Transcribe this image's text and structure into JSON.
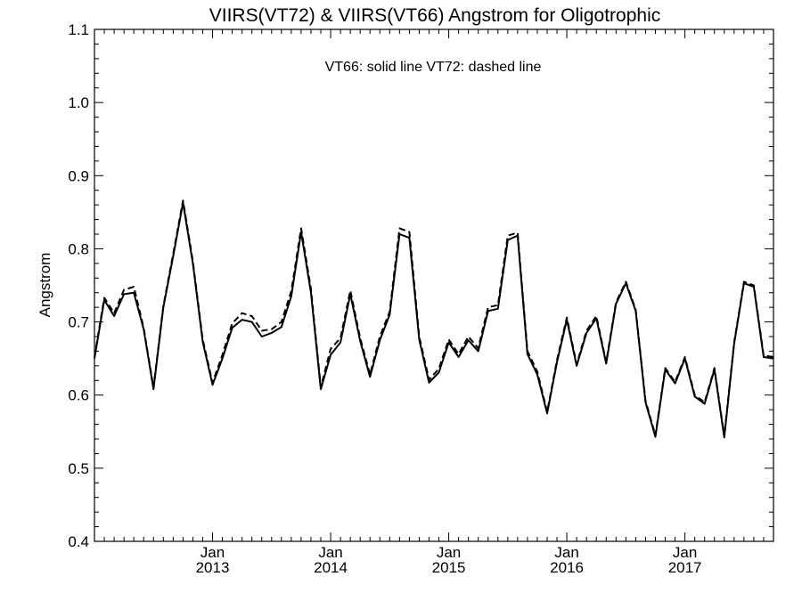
{
  "chart_data": {
    "type": "line",
    "title": "VIIRS(VT72) & VIIRS(VT66)  Angstrom for Oligotrophic",
    "ylabel": "Angstrom",
    "xlabel": "",
    "annotation": "VT66: solid line   VT72: dashed line",
    "ylim": [
      0.4,
      1.1
    ],
    "yticks": [
      0.4,
      0.5,
      0.6,
      0.7,
      0.8,
      0.9,
      1.0,
      1.1
    ],
    "ytick_labels": [
      "0.4",
      "0.5",
      "0.6",
      "0.7",
      "0.8",
      "0.9",
      "1.0",
      "1.1"
    ],
    "xlim": [
      "2012-01",
      "2017-10"
    ],
    "xticks": [
      {
        "date": "2013-01",
        "month": "Jan",
        "year": "2013"
      },
      {
        "date": "2014-01",
        "month": "Jan",
        "year": "2014"
      },
      {
        "date": "2015-01",
        "month": "Jan",
        "year": "2015"
      },
      {
        "date": "2016-01",
        "month": "Jan",
        "year": "2016"
      },
      {
        "date": "2017-01",
        "month": "Jan",
        "year": "2017"
      }
    ],
    "grid": false,
    "x": [
      "2012-01",
      "2012-02",
      "2012-03",
      "2012-04",
      "2012-05",
      "2012-06",
      "2012-07",
      "2012-08",
      "2012-09",
      "2012-10",
      "2012-11",
      "2012-12",
      "2013-01",
      "2013-02",
      "2013-03",
      "2013-04",
      "2013-05",
      "2013-06",
      "2013-07",
      "2013-08",
      "2013-09",
      "2013-10",
      "2013-11",
      "2013-12",
      "2014-01",
      "2014-02",
      "2014-03",
      "2014-04",
      "2014-05",
      "2014-06",
      "2014-07",
      "2014-08",
      "2014-09",
      "2014-10",
      "2014-11",
      "2014-12",
      "2015-01",
      "2015-02",
      "2015-03",
      "2015-04",
      "2015-05",
      "2015-06",
      "2015-07",
      "2015-08",
      "2015-09",
      "2015-10",
      "2015-11",
      "2015-12",
      "2016-01",
      "2016-02",
      "2016-03",
      "2016-04",
      "2016-05",
      "2016-06",
      "2016-07",
      "2016-08",
      "2016-09",
      "2016-10",
      "2016-11",
      "2016-12",
      "2017-01",
      "2017-02",
      "2017-03",
      "2017-04",
      "2017-05",
      "2017-06",
      "2017-07",
      "2017-08",
      "2017-09",
      "2017-10"
    ],
    "series": [
      {
        "key": "vt66",
        "style": "solid",
        "color": "#000000",
        "values": [
          0.65,
          0.73,
          0.708,
          0.738,
          0.74,
          0.69,
          0.608,
          0.72,
          0.79,
          0.863,
          0.78,
          0.673,
          0.614,
          0.65,
          0.692,
          0.703,
          0.7,
          0.68,
          0.685,
          0.693,
          0.735,
          0.823,
          0.74,
          0.608,
          0.655,
          0.672,
          0.738,
          0.674,
          0.625,
          0.675,
          0.71,
          0.82,
          0.815,
          0.676,
          0.617,
          0.631,
          0.672,
          0.652,
          0.675,
          0.66,
          0.715,
          0.718,
          0.812,
          0.818,
          0.656,
          0.628,
          0.575,
          0.645,
          0.703,
          0.64,
          0.685,
          0.705,
          0.643,
          0.725,
          0.753,
          0.715,
          0.59,
          0.543,
          0.635,
          0.616,
          0.65,
          0.598,
          0.588,
          0.635,
          0.542,
          0.67,
          0.753,
          0.748,
          0.652,
          0.65
        ]
      },
      {
        "key": "vt72",
        "style": "dashed",
        "color": "#000000",
        "values": [
          0.652,
          0.733,
          0.712,
          0.744,
          0.748,
          0.692,
          0.61,
          0.722,
          0.793,
          0.866,
          0.783,
          0.676,
          0.617,
          0.655,
          0.698,
          0.712,
          0.708,
          0.688,
          0.69,
          0.7,
          0.742,
          0.828,
          0.745,
          0.611,
          0.663,
          0.678,
          0.743,
          0.678,
          0.628,
          0.68,
          0.714,
          0.828,
          0.823,
          0.68,
          0.621,
          0.636,
          0.676,
          0.656,
          0.68,
          0.664,
          0.72,
          0.723,
          0.818,
          0.822,
          0.66,
          0.632,
          0.577,
          0.648,
          0.706,
          0.642,
          0.688,
          0.708,
          0.645,
          0.727,
          0.755,
          0.717,
          0.592,
          0.545,
          0.637,
          0.618,
          0.652,
          0.6,
          0.59,
          0.637,
          0.544,
          0.672,
          0.755,
          0.75,
          0.654,
          0.652
        ]
      }
    ]
  }
}
